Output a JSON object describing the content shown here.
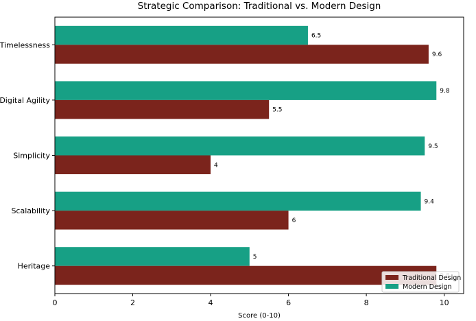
{
  "chart_data": {
    "type": "bar",
    "orientation": "horizontal",
    "title": "Strategic Comparison: Traditional vs. Modern Design",
    "xlabel": "Score (0-10)",
    "ylabel": "",
    "xlim": [
      0,
      10.5
    ],
    "xticks": [
      0,
      2,
      4,
      6,
      8,
      10
    ],
    "grid": false,
    "legend_position": "lower-right",
    "categories": [
      "Heritage",
      "Scalability",
      "Simplicity",
      "Digital Agility",
      "Timelessness"
    ],
    "series": [
      {
        "name": "Traditional Design",
        "color": "#7b241c",
        "values": [
          9.8,
          6,
          4,
          5.5,
          9.6
        ]
      },
      {
        "name": "Modern Design",
        "color": "#17a085",
        "values": [
          5,
          9.4,
          9.5,
          9.8,
          6.5
        ]
      }
    ]
  }
}
